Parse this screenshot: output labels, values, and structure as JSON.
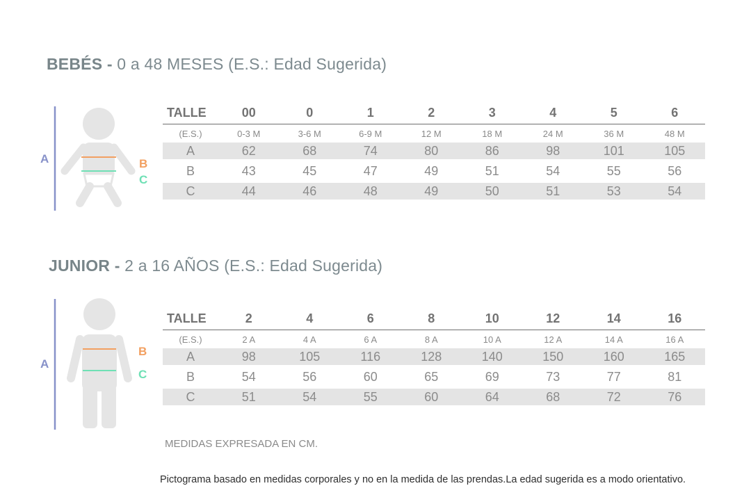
{
  "colors": {
    "label_a": "#8791c9",
    "label_b": "#f2a061",
    "label_c": "#6fe0b5",
    "figure": "#e5e5e5"
  },
  "bebes": {
    "title_bold": "BEBÉS -",
    "title_rest": " 0 a 48 MESES (E.S.: Edad Sugerida)",
    "figure": {
      "icon": "baby-pictogram-icon",
      "label_a": "A",
      "label_b": "B",
      "label_c": "C"
    },
    "table": {
      "header_label": "TALLE",
      "sizes": [
        "00",
        "0",
        "1",
        "2",
        "3",
        "4",
        "5",
        "6"
      ],
      "age_label": "(E.S.)",
      "ages": [
        "0-3 M",
        "3-6 M",
        "6-9 M",
        "12 M",
        "18 M",
        "24 M",
        "36 M",
        "48 M"
      ],
      "rows": [
        {
          "label": "A",
          "values": [
            "62",
            "68",
            "74",
            "80",
            "86",
            "98",
            "101",
            "105"
          ]
        },
        {
          "label": "B",
          "values": [
            "43",
            "45",
            "47",
            "49",
            "51",
            "54",
            "55",
            "56"
          ]
        },
        {
          "label": "C",
          "values": [
            "44",
            "46",
            "48",
            "49",
            "50",
            "51",
            "53",
            "54"
          ]
        }
      ]
    }
  },
  "junior": {
    "title_bold": "JUNIOR -",
    "title_rest": " 2 a 16 AÑOS (E.S.: Edad Sugerida)",
    "figure": {
      "icon": "child-pictogram-icon",
      "label_a": "A",
      "label_b": "B",
      "label_c": "C"
    },
    "table": {
      "header_label": "TALLE",
      "sizes": [
        "2",
        "4",
        "6",
        "8",
        "10",
        "12",
        "14",
        "16"
      ],
      "age_label": "(E.S.)",
      "ages": [
        "2 A",
        "4 A",
        "6 A",
        "8 A",
        "10 A",
        "12 A",
        "14 A",
        "16 A"
      ],
      "rows": [
        {
          "label": "A",
          "values": [
            "98",
            "105",
            "116",
            "128",
            "140",
            "150",
            "160",
            "165"
          ]
        },
        {
          "label": "B",
          "values": [
            "54",
            "56",
            "60",
            "65",
            "69",
            "73",
            "77",
            "81"
          ]
        },
        {
          "label": "C",
          "values": [
            "51",
            "54",
            "55",
            "60",
            "64",
            "68",
            "72",
            "76"
          ]
        }
      ]
    }
  },
  "note": "MEDIDAS EXPRESADA EN CM.",
  "disclaimer": "Pictograma basado en medidas corporales y no en la medida de las prendas.La edad sugerida es a modo orientativo."
}
